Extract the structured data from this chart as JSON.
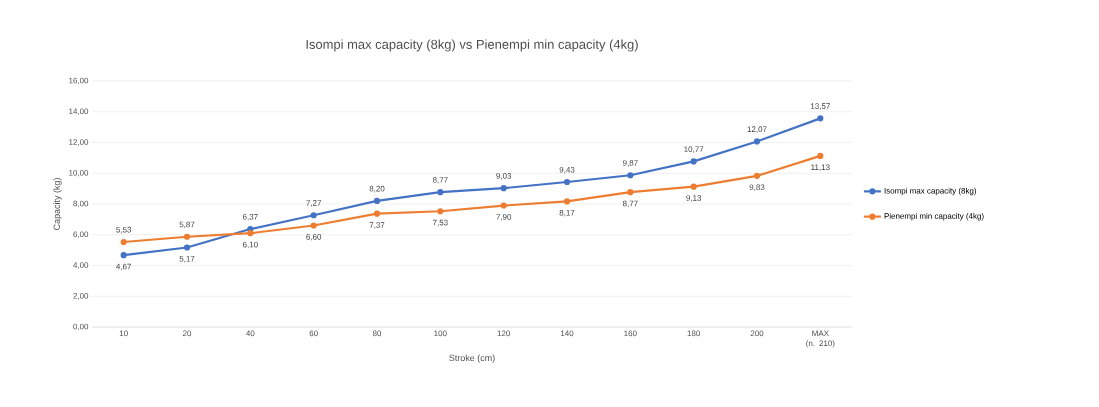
{
  "chart_data": {
    "type": "line",
    "title": "Isompi max capacity (8kg) vs Pienempi min capacity (4kg)",
    "xlabel": "Stroke (cm)",
    "ylabel": "Capacity (kg)",
    "categories": [
      "10",
      "20",
      "40",
      "60",
      "80",
      "100",
      "120",
      "140",
      "160",
      "180",
      "200",
      "MAX (n. 210)"
    ],
    "series": [
      {
        "name": "Isompi max capacity (8kg)",
        "color": "#4472c4",
        "values": [
          4.67,
          5.17,
          6.37,
          7.27,
          8.2,
          8.77,
          9.03,
          9.43,
          9.87,
          10.77,
          12.07,
          13.57
        ],
        "value_labels": [
          "4,67",
          "5,17",
          "6,37",
          "7,27",
          "8,20",
          "8,77",
          "9,03",
          "9,43",
          "9,87",
          "10,77",
          "12,07",
          "13,57"
        ]
      },
      {
        "name": "Pienempi min capacity (4kg)",
        "color": "#ed7d31",
        "values": [
          5.53,
          5.87,
          6.1,
          6.6,
          7.37,
          7.53,
          7.9,
          8.17,
          8.77,
          9.13,
          9.83,
          11.13
        ],
        "value_labels": [
          "5,53",
          "5,87",
          "6,10",
          "6,60",
          "7,37",
          "7,53",
          "7,90",
          "8,17",
          "8,77",
          "9,13",
          "9,83",
          "11,13"
        ]
      }
    ],
    "ylim": [
      0,
      16
    ],
    "yticks": [
      {
        "value": 0,
        "label": "0,00"
      },
      {
        "value": 2,
        "label": "2,00"
      },
      {
        "value": 4,
        "label": "4,00"
      },
      {
        "value": 6,
        "label": "6,00"
      },
      {
        "value": 8,
        "label": "8,00"
      },
      {
        "value": 10,
        "label": "10,00"
      },
      {
        "value": 12,
        "label": "12,00"
      },
      {
        "value": 14,
        "label": "14,00"
      },
      {
        "value": 16,
        "label": "16,00"
      }
    ],
    "grid": "y",
    "legend": "right",
    "marker": "circle",
    "line_style": "solid"
  }
}
